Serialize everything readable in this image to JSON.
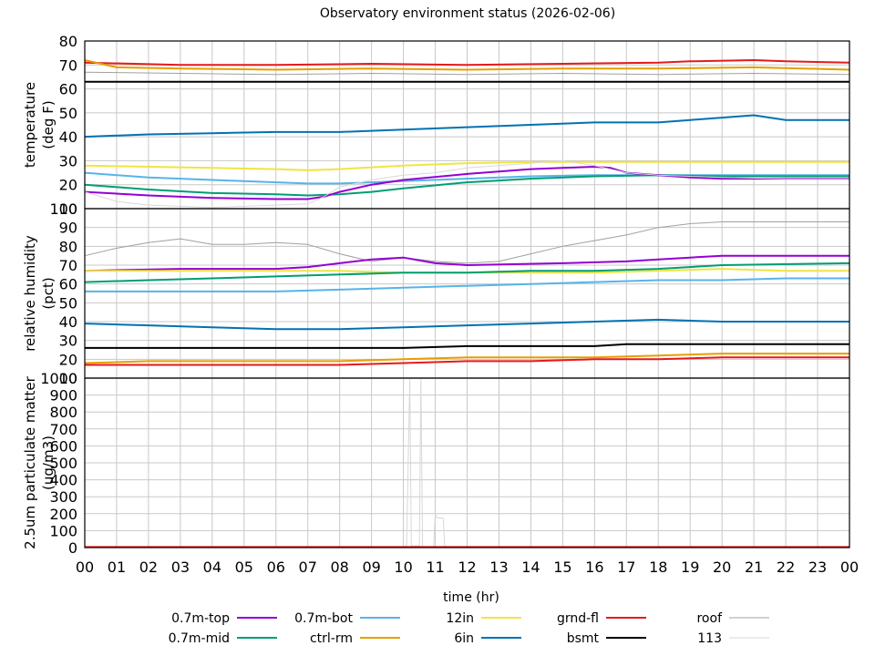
{
  "chart_data": {
    "title": "Observatory environment status (2026-02-06)",
    "type": "line",
    "xlabel": "time (hr)",
    "xlim": [
      0,
      24
    ],
    "x_ticks": [
      "00",
      "01",
      "02",
      "03",
      "04",
      "05",
      "06",
      "07",
      "08",
      "09",
      "10",
      "11",
      "12",
      "13",
      "14",
      "15",
      "16",
      "17",
      "18",
      "19",
      "20",
      "21",
      "22",
      "23",
      "00"
    ],
    "grid": true,
    "legend_position": "bottom",
    "legend": [
      {
        "name": "0.7m-top",
        "color": "#9400d3"
      },
      {
        "name": "0.7m-bot",
        "color": "#56b4e9"
      },
      {
        "name": "12in",
        "color": "#f0e442"
      },
      {
        "name": "grnd-fl",
        "color": "#e41a1c"
      },
      {
        "name": "roof",
        "color": "#a0a0a0"
      },
      {
        "name": "0.7m-mid",
        "color": "#009e73"
      },
      {
        "name": "ctrl-rm",
        "color": "#e69f00"
      },
      {
        "name": "6in",
        "color": "#0072b2"
      },
      {
        "name": "bsmt",
        "color": "#000000"
      },
      {
        "name": "113",
        "color": "#d8d8d8"
      }
    ],
    "panels": [
      {
        "ylabel": "temperature (deg F)",
        "ylim": [
          10,
          80
        ],
        "yticks": [
          80,
          70,
          60,
          50,
          40,
          30,
          20,
          10
        ],
        "series": [
          {
            "name": "grnd-fl",
            "x": [
              0,
              3,
              6,
              9,
              12,
              15,
              18,
              19,
              21,
              22,
              24
            ],
            "y": [
              71,
              70,
              70,
              70.5,
              70,
              70.5,
              71,
              71.5,
              72,
              71.5,
              71
            ]
          },
          {
            "name": "ctrl-rm",
            "x": [
              0,
              1,
              3,
              6,
              9,
              12,
              15,
              18,
              21,
              24
            ],
            "y": [
              72,
              69,
              68.5,
              68,
              68.5,
              68,
              68.5,
              68.5,
              69,
              68
            ]
          },
          {
            "name": "roof",
            "x": [
              0,
              3,
              6,
              9,
              12,
              15,
              18,
              21,
              24
            ],
            "y": [
              67,
              66.5,
              66,
              66.5,
              66,
              66.5,
              66,
              66.5,
              66
            ]
          },
          {
            "name": "bsmt",
            "x": [
              0,
              12,
              24
            ],
            "y": [
              63,
              63,
              63
            ]
          },
          {
            "name": "6in",
            "x": [
              0,
              2,
              4,
              6,
              8,
              10,
              12,
              14,
              16,
              18,
              19,
              20,
              21,
              22,
              24
            ],
            "y": [
              40,
              41,
              41.5,
              42,
              42,
              43,
              44,
              45,
              46,
              46,
              47,
              48,
              49,
              47,
              47
            ]
          },
          {
            "name": "12in",
            "x": [
              0,
              2,
              4,
              6,
              7,
              8,
              10,
              12,
              14,
              16,
              18,
              20,
              22,
              24
            ],
            "y": [
              28,
              27.5,
              27,
              26.5,
              26,
              26.5,
              28,
              29,
              29.5,
              29.5,
              29.5,
              29.5,
              29.5,
              29.5
            ]
          },
          {
            "name": "0.7m-bot",
            "x": [
              0,
              2,
              4,
              6,
              7,
              8,
              10,
              12,
              14,
              16,
              17,
              18,
              20,
              22,
              24
            ],
            "y": [
              25,
              23,
              22,
              21,
              20.5,
              20.5,
              21.5,
              22.5,
              23.5,
              24,
              24,
              24,
              24,
              24,
              24
            ]
          },
          {
            "name": "0.7m-mid",
            "x": [
              0,
              2,
              4,
              6,
              7,
              8,
              9,
              10,
              12,
              14,
              16,
              18,
              20,
              22,
              24
            ],
            "y": [
              20,
              18,
              16.5,
              16,
              15.5,
              16,
              17,
              18.5,
              21,
              22.5,
              23.5,
              24,
              23.5,
              23.5,
              23.5
            ]
          },
          {
            "name": "0.7m-top",
            "x": [
              0,
              2,
              4,
              6,
              7,
              7.5,
              8,
              9,
              10,
              12,
              13,
              14,
              15,
              16,
              16.5,
              17,
              18,
              19,
              20,
              21,
              22,
              24
            ],
            "y": [
              17,
              15.5,
              14.5,
              14,
              14,
              15,
              17,
              20,
              22,
              24.5,
              25.5,
              26.5,
              27,
              27.5,
              27,
              25,
              24,
              23,
              22.5,
              22.5,
              22.5,
              22.5
            ]
          },
          {
            "name": "113",
            "x": [
              0,
              1,
              2,
              3,
              4,
              5,
              6,
              7,
              7.5,
              8,
              9,
              10,
              11,
              12,
              13,
              14,
              15,
              16,
              17,
              18,
              20,
              22,
              24
            ],
            "y": [
              17,
              13,
              11.5,
              11,
              10.5,
              11,
              11.5,
              12,
              15,
              19,
              22,
              24,
              25,
              27,
              28,
              29,
              30,
              28,
              25,
              24,
              23,
              22.5,
              22.5
            ]
          }
        ]
      },
      {
        "ylabel": "relative humidity (pct)",
        "ylim": [
          10,
          100
        ],
        "yticks": [
          100,
          90,
          80,
          70,
          60,
          50,
          40,
          30,
          20,
          10
        ],
        "series": [
          {
            "name": "roof",
            "x": [
              0,
              1,
              2,
              3,
              4,
              5,
              6,
              7,
              8,
              9,
              10,
              11,
              12,
              13,
              14,
              15,
              16,
              17,
              18,
              19,
              20,
              21,
              22,
              23,
              24
            ],
            "y": [
              75,
              79,
              82,
              84,
              81,
              81,
              82,
              81,
              76,
              72,
              74,
              72,
              71,
              72,
              76,
              80,
              83,
              86,
              90,
              92,
              93,
              93,
              93,
              93,
              93
            ]
          },
          {
            "name": "0.7m-top",
            "x": [
              0,
              3,
              6,
              7,
              8,
              9,
              10,
              11,
              12,
              15,
              17,
              18,
              19,
              20,
              24
            ],
            "y": [
              67,
              68,
              68,
              69,
              71,
              73,
              74,
              71,
              70,
              71,
              72,
              73,
              74,
              75,
              75
            ]
          },
          {
            "name": "12in",
            "x": [
              0,
              2,
              4,
              6,
              8,
              10,
              12,
              14,
              16,
              18,
              20,
              22,
              24
            ],
            "y": [
              67,
              67,
              67,
              67,
              67,
              66,
              66,
              66,
              66,
              67,
              68,
              67,
              67
            ]
          },
          {
            "name": "0.7m-mid",
            "x": [
              0,
              2,
              4,
              6,
              8,
              10,
              12,
              14,
              16,
              18,
              20,
              24
            ],
            "y": [
              61,
              62,
              63,
              64,
              65,
              66,
              66,
              67,
              67,
              68,
              70,
              71
            ]
          },
          {
            "name": "0.7m-bot",
            "x": [
              0,
              3,
              6,
              8,
              10,
              12,
              14,
              16,
              18,
              20,
              22,
              24
            ],
            "y": [
              56,
              56,
              56,
              57,
              58,
              59,
              60,
              61,
              62,
              62,
              63,
              63
            ]
          },
          {
            "name": "6in",
            "x": [
              0,
              2,
              4,
              6,
              8,
              10,
              12,
              14,
              16,
              18,
              20,
              22,
              24
            ],
            "y": [
              39,
              38,
              37,
              36,
              36,
              37,
              38,
              39,
              40,
              41,
              40,
              40,
              40
            ]
          },
          {
            "name": "bsmt",
            "x": [
              0,
              4,
              6,
              8,
              10,
              12,
              14,
              16,
              17,
              18,
              20,
              22,
              24
            ],
            "y": [
              26,
              26,
              26,
              26,
              26,
              27,
              27,
              27,
              28,
              28,
              28,
              28,
              28
            ]
          },
          {
            "name": "ctrl-rm",
            "x": [
              0,
              2,
              4,
              6,
              8,
              10,
              12,
              14,
              16,
              18,
              20,
              22,
              24
            ],
            "y": [
              18,
              19,
              19,
              19,
              19,
              20,
              21,
              21,
              21,
              22,
              23,
              23,
              23
            ]
          },
          {
            "name": "grnd-fl",
            "x": [
              0,
              2,
              4,
              6,
              8,
              10,
              12,
              14,
              16,
              18,
              20,
              22,
              24
            ],
            "y": [
              17,
              17,
              17,
              17,
              17,
              18,
              19,
              19,
              20,
              20,
              21,
              21,
              21
            ]
          }
        ]
      },
      {
        "ylabel": "2.5um particulate matter (ug/m3)",
        "ylim": [
          0,
          1000
        ],
        "yticks": [
          1000,
          900,
          800,
          700,
          600,
          500,
          400,
          300,
          200,
          100,
          0
        ],
        "series": [
          {
            "name": "113",
            "x": [
              0,
              10,
              10.1,
              10.2,
              10.25,
              10.5,
              10.55,
              10.6,
              10.65,
              10.95,
              11,
              11.05,
              11.25,
              11.3,
              12,
              24
            ],
            "y": [
              0,
              0,
              10,
              1000,
              10,
              10,
              1000,
              10,
              0,
              0,
              200,
              175,
              175,
              0,
              0,
              0
            ]
          },
          {
            "name": "grnd-fl",
            "x": [
              0,
              24
            ],
            "y": [
              3,
              3
            ]
          }
        ]
      }
    ]
  }
}
